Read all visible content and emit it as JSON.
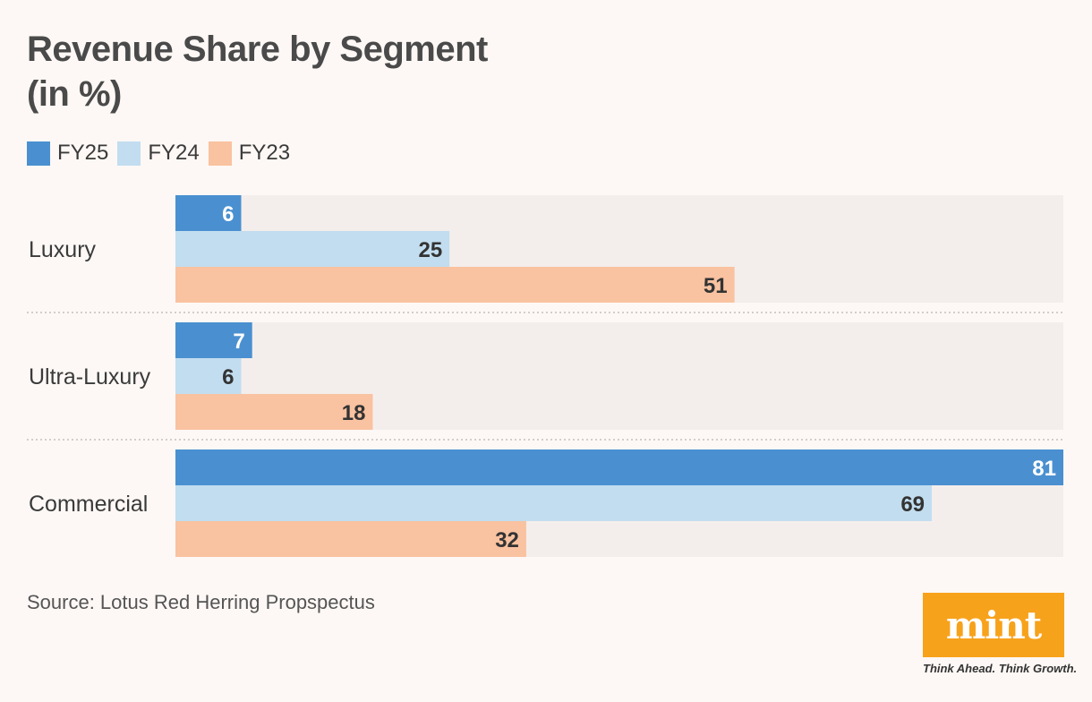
{
  "title": {
    "line1": "Revenue Share by Segment",
    "line2": "(in %)"
  },
  "legend": [
    {
      "label": "FY25",
      "color": "#4a90d0"
    },
    {
      "label": "FY24",
      "color": "#c2ddef"
    },
    {
      "label": "FY23",
      "color": "#f9c2a0"
    }
  ],
  "chart_data": {
    "type": "bar",
    "orientation": "horizontal",
    "categories": [
      "Luxury",
      "Ultra-Luxury",
      "Commercial"
    ],
    "series": [
      {
        "name": "FY25",
        "values": [
          6,
          7,
          81
        ],
        "color": "#4a90d0"
      },
      {
        "name": "FY24",
        "values": [
          25,
          6,
          69
        ],
        "color": "#c2ddef"
      },
      {
        "name": "FY23",
        "values": [
          51,
          18,
          32
        ],
        "color": "#f9c2a0"
      }
    ],
    "xlim": [
      0,
      81
    ],
    "title": "Revenue Share by Segment (in %)",
    "xlabel": "",
    "ylabel": ""
  },
  "source": "Source: Lotus Red Herring Propspectus",
  "logo": {
    "text": "mint",
    "tagline": "Think Ahead. Think Growth."
  }
}
